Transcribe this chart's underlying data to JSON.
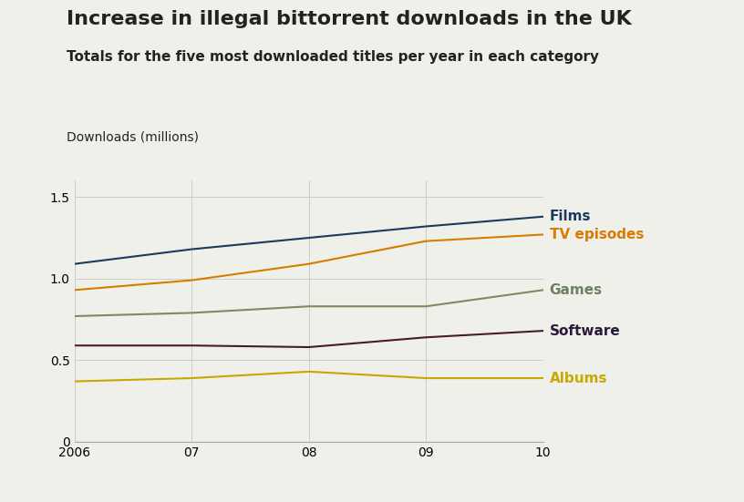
{
  "title": "Increase in illegal bittorrent downloads in the UK",
  "subtitle": "Totals for the five most downloaded titles per year in each category",
  "ylabel": "Downloads (millions)",
  "x_years": [
    2006,
    2007,
    2008,
    2009,
    2010
  ],
  "x_labels": [
    "2006",
    "07",
    "08",
    "09",
    "10"
  ],
  "series": {
    "Films": {
      "values": [
        1.09,
        1.18,
        1.25,
        1.32,
        1.38
      ],
      "color": "#1b3a5c",
      "label_color": "#1b3a5c"
    },
    "TV episodes": {
      "values": [
        0.93,
        0.99,
        1.09,
        1.23,
        1.27
      ],
      "color": "#d97b00",
      "label_color": "#d97b00"
    },
    "Games": {
      "values": [
        0.77,
        0.79,
        0.83,
        0.83,
        0.93
      ],
      "color": "#7a8c5e",
      "label_color": "#6e8060"
    },
    "Software": {
      "values": [
        0.59,
        0.59,
        0.58,
        0.64,
        0.68
      ],
      "color": "#4a1a2c",
      "label_color": "#2a1a3c"
    },
    "Albums": {
      "values": [
        0.37,
        0.39,
        0.43,
        0.39,
        0.39
      ],
      "color": "#c8a800",
      "label_color": "#c8a800"
    }
  },
  "ylim": [
    0,
    1.6
  ],
  "yticks": [
    0,
    0.5,
    1.0,
    1.5
  ],
  "background_color": "#f0f0eb",
  "grid_color": "#cccccc",
  "title_fontsize": 16,
  "subtitle_fontsize": 11,
  "ylabel_fontsize": 10,
  "label_fontsize": 11,
  "tick_fontsize": 10
}
